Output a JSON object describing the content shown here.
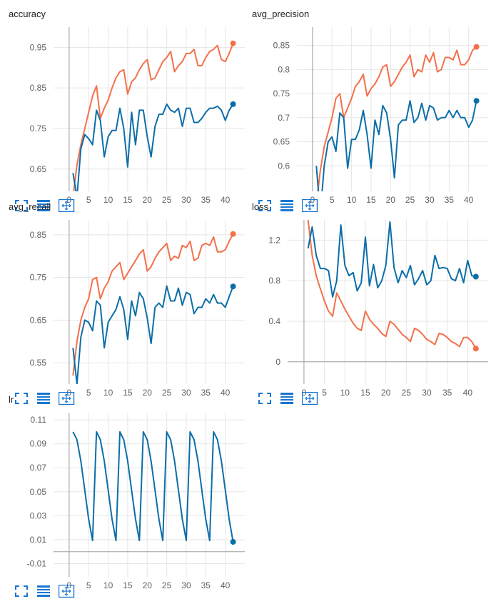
{
  "toolbar": {
    "icons": [
      "fullscreen-icon",
      "data-list-icon",
      "fit-domain-icon"
    ],
    "color": "#1976d2"
  },
  "colors": {
    "train": "#f4704b",
    "validation": "#0b6ea8",
    "axis": "#9e9e9e",
    "grid": "#e6e6e6"
  },
  "chart_data": [
    {
      "id": "accuracy",
      "title": "accuracy",
      "type": "line",
      "xlim": [
        -4,
        45
      ],
      "ylim": [
        0.595,
        1.0
      ],
      "xticks": [
        0,
        5,
        10,
        15,
        20,
        25,
        30,
        35,
        40
      ],
      "xtick_labels": [
        "0",
        "5",
        "10",
        "15",
        "20",
        "25",
        "30",
        "35",
        "40"
      ],
      "yticks": [
        0.65,
        0.75,
        0.85,
        0.95
      ],
      "ytick_labels": [
        "0.65",
        "0.75",
        "0.85",
        "0.95"
      ],
      "series": [
        {
          "color": "#f4704b",
          "x": [
            1,
            2,
            3,
            4,
            5,
            6,
            7,
            8,
            9,
            10,
            11,
            12,
            13,
            14,
            15,
            16,
            17,
            18,
            19,
            20,
            21,
            22,
            23,
            24,
            25,
            26,
            27,
            28,
            29,
            30,
            31,
            32,
            33,
            34,
            35,
            36,
            37,
            38,
            39,
            40,
            41,
            42
          ],
          "y": [
            0.58,
            0.66,
            0.71,
            0.75,
            0.79,
            0.83,
            0.855,
            0.775,
            0.8,
            0.82,
            0.85,
            0.875,
            0.89,
            0.895,
            0.835,
            0.865,
            0.875,
            0.895,
            0.91,
            0.92,
            0.87,
            0.875,
            0.895,
            0.915,
            0.925,
            0.94,
            0.89,
            0.905,
            0.915,
            0.935,
            0.935,
            0.945,
            0.905,
            0.905,
            0.925,
            0.94,
            0.945,
            0.955,
            0.92,
            0.915,
            0.935,
            0.96
          ]
        },
        {
          "color": "#0b6ea8",
          "x": [
            1,
            2,
            3,
            4,
            5,
            6,
            7,
            8,
            9,
            10,
            11,
            12,
            13,
            14,
            15,
            16,
            17,
            18,
            19,
            20,
            21,
            22,
            23,
            24,
            25,
            26,
            27,
            28,
            29,
            30,
            31,
            32,
            33,
            34,
            35,
            36,
            37,
            38,
            39,
            40,
            41,
            42
          ],
          "y": [
            0.64,
            0.58,
            0.7,
            0.735,
            0.725,
            0.71,
            0.795,
            0.77,
            0.68,
            0.73,
            0.745,
            0.745,
            0.8,
            0.75,
            0.655,
            0.79,
            0.71,
            0.795,
            0.795,
            0.73,
            0.68,
            0.755,
            0.785,
            0.785,
            0.81,
            0.795,
            0.79,
            0.8,
            0.755,
            0.8,
            0.8,
            0.765,
            0.765,
            0.775,
            0.79,
            0.8,
            0.8,
            0.805,
            0.795,
            0.77,
            0.795,
            0.81
          ]
        }
      ]
    },
    {
      "id": "avg_precision",
      "title": "avg_precision",
      "type": "line",
      "xlim": [
        -4,
        45
      ],
      "ylim": [
        0.547,
        0.888
      ],
      "xticks": [
        0,
        5,
        10,
        15,
        20,
        25,
        30,
        35,
        40
      ],
      "xtick_labels": [
        "0",
        "5",
        "10",
        "15",
        "20",
        "25",
        "30",
        "35",
        "40"
      ],
      "yticks": [
        0.6,
        0.65,
        0.7,
        0.75,
        0.8,
        0.85
      ],
      "ytick_labels": [
        "0.6",
        "0.65",
        "0.7",
        "0.75",
        "0.8",
        "0.85"
      ],
      "series": [
        {
          "color": "#f4704b",
          "x": [
            1,
            2,
            3,
            4,
            5,
            6,
            7,
            8,
            9,
            10,
            11,
            12,
            13,
            14,
            15,
            16,
            17,
            18,
            19,
            20,
            21,
            22,
            23,
            24,
            25,
            26,
            27,
            28,
            29,
            30,
            31,
            32,
            33,
            34,
            35,
            36,
            37,
            38,
            39,
            40,
            41,
            42
          ],
          "y": [
            0.52,
            0.59,
            0.64,
            0.67,
            0.7,
            0.74,
            0.75,
            0.7,
            0.72,
            0.74,
            0.765,
            0.775,
            0.79,
            0.745,
            0.76,
            0.77,
            0.785,
            0.805,
            0.81,
            0.765,
            0.775,
            0.79,
            0.805,
            0.815,
            0.83,
            0.785,
            0.8,
            0.795,
            0.83,
            0.815,
            0.835,
            0.795,
            0.8,
            0.825,
            0.825,
            0.82,
            0.84,
            0.81,
            0.81,
            0.82,
            0.84,
            0.847
          ]
        },
        {
          "color": "#0b6ea8",
          "x": [
            1,
            2,
            3,
            4,
            5,
            6,
            7,
            8,
            9,
            10,
            11,
            12,
            13,
            14,
            15,
            16,
            17,
            18,
            19,
            20,
            21,
            22,
            23,
            24,
            25,
            26,
            27,
            28,
            29,
            30,
            31,
            32,
            33,
            34,
            35,
            36,
            37,
            38,
            39,
            40,
            41,
            42
          ],
          "y": [
            0.6,
            0.5,
            0.6,
            0.65,
            0.66,
            0.63,
            0.71,
            0.7,
            0.595,
            0.655,
            0.655,
            0.675,
            0.715,
            0.665,
            0.595,
            0.695,
            0.665,
            0.725,
            0.71,
            0.655,
            0.575,
            0.685,
            0.695,
            0.695,
            0.735,
            0.69,
            0.7,
            0.73,
            0.695,
            0.725,
            0.72,
            0.695,
            0.7,
            0.7,
            0.715,
            0.7,
            0.715,
            0.7,
            0.7,
            0.68,
            0.695,
            0.735
          ]
        }
      ]
    },
    {
      "id": "avg_recall",
      "title": "avg_recall",
      "type": "line",
      "xlim": [
        -4,
        45
      ],
      "ylim": [
        0.5,
        0.885
      ],
      "xticks": [
        0,
        5,
        10,
        15,
        20,
        25,
        30,
        35,
        40
      ],
      "xtick_labels": [
        "0",
        "5",
        "10",
        "15",
        "20",
        "25",
        "30",
        "35",
        "40"
      ],
      "yticks": [
        0.55,
        0.65,
        0.75,
        0.85
      ],
      "ytick_labels": [
        "0.55",
        "0.65",
        "0.75",
        "0.85"
      ],
      "series": [
        {
          "color": "#f4704b",
          "x": [
            1,
            2,
            3,
            4,
            5,
            6,
            7,
            8,
            9,
            10,
            11,
            12,
            13,
            14,
            15,
            16,
            17,
            18,
            19,
            20,
            21,
            22,
            23,
            24,
            25,
            26,
            27,
            28,
            29,
            30,
            31,
            32,
            33,
            34,
            35,
            36,
            37,
            38,
            39,
            40,
            41,
            42
          ],
          "y": [
            0.52,
            0.6,
            0.65,
            0.68,
            0.7,
            0.745,
            0.75,
            0.7,
            0.725,
            0.74,
            0.765,
            0.775,
            0.785,
            0.745,
            0.76,
            0.775,
            0.79,
            0.805,
            0.815,
            0.765,
            0.775,
            0.795,
            0.81,
            0.82,
            0.83,
            0.79,
            0.8,
            0.795,
            0.825,
            0.82,
            0.835,
            0.79,
            0.795,
            0.825,
            0.83,
            0.825,
            0.845,
            0.81,
            0.81,
            0.815,
            0.835,
            0.852
          ]
        },
        {
          "color": "#0b6ea8",
          "x": [
            1,
            2,
            3,
            4,
            5,
            6,
            7,
            8,
            9,
            10,
            11,
            12,
            13,
            14,
            15,
            16,
            17,
            18,
            19,
            20,
            21,
            22,
            23,
            24,
            25,
            26,
            27,
            28,
            29,
            30,
            31,
            32,
            33,
            34,
            35,
            36,
            37,
            38,
            39,
            40,
            41,
            42
          ],
          "y": [
            0.585,
            0.5,
            0.61,
            0.65,
            0.645,
            0.625,
            0.695,
            0.685,
            0.585,
            0.645,
            0.66,
            0.675,
            0.705,
            0.675,
            0.605,
            0.695,
            0.66,
            0.715,
            0.7,
            0.655,
            0.595,
            0.68,
            0.69,
            0.68,
            0.73,
            0.695,
            0.695,
            0.725,
            0.685,
            0.715,
            0.71,
            0.665,
            0.68,
            0.68,
            0.7,
            0.69,
            0.71,
            0.69,
            0.69,
            0.68,
            0.705,
            0.729
          ]
        }
      ]
    },
    {
      "id": "loss",
      "title": "loss",
      "type": "line",
      "xlim": [
        -4,
        45
      ],
      "ylim": [
        -0.22,
        1.4
      ],
      "xticks": [
        0,
        5,
        10,
        15,
        20,
        25,
        30,
        35,
        40
      ],
      "xtick_labels": [
        "0",
        "5",
        "10",
        "15",
        "20",
        "25",
        "30",
        "35",
        "40"
      ],
      "yticks": [
        0,
        0.4,
        0.8,
        1.2
      ],
      "ytick_labels": [
        "0",
        "0.4",
        "0.8",
        "1.2"
      ],
      "series": [
        {
          "color": "#f4704b",
          "x": [
            1,
            2,
            3,
            4,
            5,
            6,
            7,
            8,
            9,
            10,
            11,
            12,
            13,
            14,
            15,
            16,
            17,
            18,
            19,
            20,
            21,
            22,
            23,
            24,
            25,
            26,
            27,
            28,
            29,
            30,
            31,
            32,
            33,
            34,
            35,
            36,
            37,
            38,
            39,
            40,
            41,
            42
          ],
          "y": [
            1.4,
            1.05,
            0.85,
            0.72,
            0.6,
            0.5,
            0.45,
            0.68,
            0.6,
            0.52,
            0.45,
            0.38,
            0.33,
            0.31,
            0.5,
            0.42,
            0.37,
            0.33,
            0.28,
            0.25,
            0.4,
            0.37,
            0.32,
            0.27,
            0.24,
            0.2,
            0.33,
            0.31,
            0.27,
            0.22,
            0.2,
            0.17,
            0.28,
            0.27,
            0.24,
            0.2,
            0.18,
            0.15,
            0.24,
            0.24,
            0.2,
            0.13
          ]
        },
        {
          "color": "#0b6ea8",
          "x": [
            1,
            2,
            3,
            4,
            5,
            6,
            7,
            8,
            9,
            10,
            11,
            12,
            13,
            14,
            15,
            16,
            17,
            18,
            19,
            20,
            21,
            22,
            23,
            24,
            25,
            26,
            27,
            28,
            29,
            30,
            31,
            32,
            33,
            34,
            35,
            36,
            37,
            38,
            39,
            40,
            41,
            42
          ],
          "y": [
            1.12,
            1.33,
            1.05,
            0.92,
            0.92,
            0.9,
            0.64,
            0.8,
            1.35,
            0.95,
            0.85,
            0.88,
            0.7,
            0.78,
            1.23,
            0.75,
            0.96,
            0.73,
            0.8,
            0.95,
            1.38,
            0.93,
            0.78,
            0.9,
            0.83,
            0.95,
            0.76,
            0.82,
            0.9,
            0.76,
            0.8,
            1.05,
            0.92,
            0.93,
            0.92,
            0.82,
            0.8,
            0.92,
            0.78,
            1.0,
            0.85,
            0.84
          ]
        }
      ]
    },
    {
      "id": "lr",
      "title": "lr",
      "type": "line",
      "xlim": [
        -4,
        45
      ],
      "ylim": [
        -0.021,
        0.116
      ],
      "xticks": [
        0,
        5,
        10,
        15,
        20,
        25,
        30,
        35,
        40
      ],
      "xtick_labels": [
        "0",
        "5",
        "10",
        "15",
        "20",
        "25",
        "30",
        "35",
        "40"
      ],
      "yticks": [
        -0.01,
        0.01,
        0.03,
        0.05,
        0.07,
        0.09,
        0.11
      ],
      "ytick_labels": [
        "-0.01",
        "0.01",
        "0.03",
        "0.05",
        "0.07",
        "0.09",
        "0.11"
      ],
      "series": [
        {
          "color": "#0b6ea8",
          "x": [
            1,
            2,
            3,
            4,
            5,
            6,
            7,
            8,
            9,
            10,
            11,
            12,
            13,
            14,
            15,
            16,
            17,
            18,
            19,
            20,
            21,
            22,
            23,
            24,
            25,
            26,
            27,
            28,
            29,
            30,
            31,
            32,
            33,
            34,
            35,
            36,
            37,
            38,
            39,
            40,
            41,
            42
          ],
          "y": [
            0.1,
            0.0935,
            0.0757,
            0.0514,
            0.0271,
            0.0093,
            0.1,
            0.0935,
            0.0757,
            0.0514,
            0.0271,
            0.0093,
            0.1,
            0.0935,
            0.0757,
            0.0514,
            0.0271,
            0.0093,
            0.1,
            0.0935,
            0.0757,
            0.0514,
            0.0271,
            0.0093,
            0.1,
            0.0935,
            0.0757,
            0.0514,
            0.0271,
            0.0093,
            0.1,
            0.0935,
            0.0757,
            0.0514,
            0.0271,
            0.0093,
            0.1,
            0.0935,
            0.0757,
            0.0514,
            0.0271,
            0.0082
          ]
        }
      ]
    }
  ]
}
